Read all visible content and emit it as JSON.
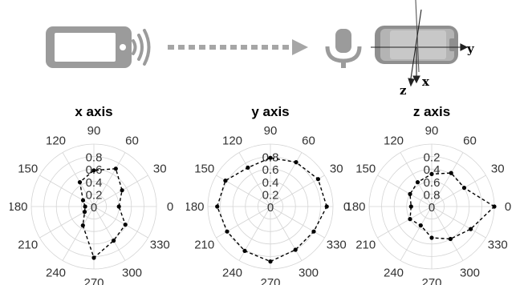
{
  "illustration": {
    "phone_icon": "smartphone-icon",
    "wave_icon": "sound-waves-icon",
    "arrow_icon": "dashed-arrow-icon",
    "mic_icon": "microphone-icon",
    "device_icon": "rotated-phone-icon",
    "axis_labels": {
      "y": "y",
      "z": "z",
      "x": "x"
    },
    "colors": {
      "icon_gray": "#9b9b9b",
      "phone_screen": "#ffffff"
    }
  },
  "chart_data": [
    {
      "type": "polar-line",
      "title": "x axis",
      "theta_ticks": [
        0,
        30,
        60,
        90,
        120,
        150,
        180,
        210,
        240,
        270,
        300,
        330
      ],
      "r_ticks": [
        "0",
        "0.2",
        "0.4",
        "0.6",
        "0.8"
      ],
      "r_max": 1.0,
      "series": [
        {
          "theta": [
            0,
            30,
            60,
            90,
            120,
            150,
            180,
            210,
            240,
            270,
            300,
            330
          ],
          "r": [
            0.4,
            0.52,
            0.7,
            0.58,
            0.45,
            0.2,
            0.14,
            0.17,
            0.35,
            0.82,
            0.63,
            0.58
          ]
        }
      ]
    },
    {
      "type": "polar-line",
      "title": "y axis",
      "theta_ticks": [
        0,
        30,
        60,
        90,
        120,
        150,
        180,
        210,
        240,
        270,
        300,
        330
      ],
      "r_ticks": [
        "0",
        "0.2",
        "0.4",
        "0.6",
        "0.8"
      ],
      "r_max": 1.0,
      "series": [
        {
          "theta": [
            0,
            30,
            60,
            90,
            120,
            150,
            180,
            210,
            240,
            270,
            300,
            330
          ],
          "r": [
            0.9,
            0.88,
            0.82,
            0.78,
            0.72,
            0.83,
            0.85,
            0.8,
            0.82,
            0.88,
            0.8,
            0.8
          ]
        }
      ]
    },
    {
      "type": "polar-line",
      "title": "z axis",
      "theta_ticks": [
        0,
        30,
        60,
        90,
        120,
        150,
        180,
        210,
        240,
        270,
        300,
        330
      ],
      "r_ticks": [
        "0",
        "0.8",
        "0.6",
        "0.4",
        "0.2"
      ],
      "r_max": 1.0,
      "series": [
        {
          "theta": [
            0,
            30,
            60,
            90,
            120,
            150,
            180,
            210,
            240,
            270,
            300,
            330
          ],
          "r": [
            1.0,
            0.6,
            0.62,
            0.52,
            0.45,
            0.4,
            0.33,
            0.4,
            0.35,
            0.5,
            0.6,
            0.72
          ]
        }
      ]
    }
  ]
}
